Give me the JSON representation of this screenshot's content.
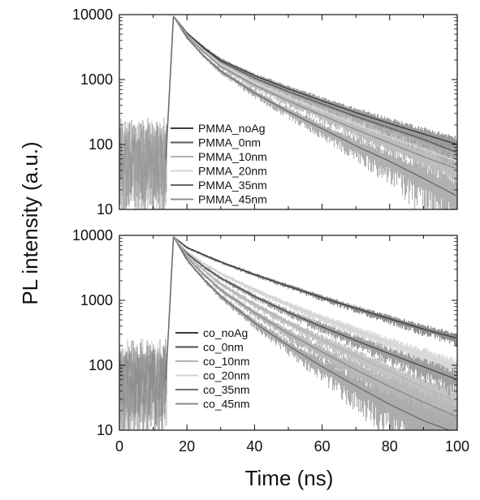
{
  "chart_data": [
    {
      "type": "line",
      "panel": "top",
      "yscale": "log",
      "xlim": [
        0,
        100
      ],
      "ylim": [
        10,
        10000
      ],
      "ytick_labels": [
        "10",
        "100",
        "1000",
        "10000"
      ],
      "xtick_labels": [],
      "legend_position": "bottom-left (inside)",
      "grid": false,
      "decay_onset_ns": 14,
      "peak": {
        "x": 16,
        "y": 9500
      },
      "series": [
        {
          "name": "PMMA_noAg",
          "color": "#3c3c3c",
          "noise_color": "#9a9a9a",
          "x": [
            16,
            20,
            25,
            30,
            40,
            50,
            60,
            70,
            80,
            90,
            100
          ],
          "y": [
            9500,
            5200,
            3100,
            2000,
            1150,
            720,
            470,
            310,
            210,
            145,
            100
          ]
        },
        {
          "name": "PMMA_0nm",
          "color": "#5a5a5a",
          "noise_color": "#a8a8a8",
          "x": [
            16,
            20,
            25,
            30,
            40,
            50,
            60,
            70,
            80,
            90,
            100
          ],
          "y": [
            9500,
            5000,
            2950,
            1900,
            1050,
            650,
            420,
            270,
            180,
            120,
            75
          ]
        },
        {
          "name": "PMMA_10nm",
          "color": "#b4b4b4",
          "noise_color": "#c8c8c8",
          "x": [
            16,
            20,
            25,
            30,
            40,
            50,
            60,
            70,
            80,
            90,
            100
          ],
          "y": [
            9500,
            4900,
            2850,
            1800,
            980,
            600,
            380,
            245,
            160,
            105,
            70
          ]
        },
        {
          "name": "PMMA_20nm",
          "color": "#d6d6d6",
          "noise_color": "#dcdcdc",
          "x": [
            16,
            20,
            25,
            30,
            40,
            50,
            60,
            70,
            80,
            90,
            100
          ],
          "y": [
            9500,
            4800,
            2750,
            1700,
            900,
            540,
            330,
            205,
            130,
            85,
            55
          ]
        },
        {
          "name": "PMMA_35nm",
          "color": "#6a6a6a",
          "noise_color": "#b0b0b0",
          "x": [
            16,
            20,
            25,
            30,
            40,
            50,
            60,
            70,
            80,
            90,
            100
          ],
          "y": [
            9500,
            4400,
            2300,
            1350,
            620,
            320,
            175,
            95,
            55,
            30,
            16
          ]
        },
        {
          "name": "PMMA_45nm",
          "color": "#8c8c8c",
          "noise_color": "#bdbdbd",
          "x": [
            16,
            20,
            25,
            30,
            40,
            50,
            60,
            70,
            80,
            90,
            100
          ],
          "y": [
            9500,
            4700,
            2650,
            1600,
            820,
            470,
            280,
            170,
            105,
            65,
            42
          ]
        }
      ]
    },
    {
      "type": "line",
      "panel": "bottom",
      "yscale": "log",
      "xlim": [
        0,
        100
      ],
      "ylim": [
        10,
        10000
      ],
      "ytick_labels": [
        "10",
        "100",
        "1000",
        "10000"
      ],
      "xtick_labels": [
        "0",
        "20",
        "40",
        "60",
        "80",
        "100"
      ],
      "xlabel": "Time (ns)",
      "legend_position": "bottom-left (inside)",
      "grid": false,
      "decay_onset_ns": 14,
      "peak": {
        "x": 16,
        "y": 9500
      },
      "series": [
        {
          "name": "co_noAg",
          "color": "#3c3c3c",
          "noise_color": "#8e8e8e",
          "x": [
            16,
            20,
            25,
            30,
            40,
            50,
            60,
            70,
            80,
            90,
            100
          ],
          "y": [
            9500,
            6500,
            5000,
            3900,
            2500,
            1650,
            1100,
            750,
            520,
            360,
            260
          ]
        },
        {
          "name": "co_0nm",
          "color": "#4c4c4c",
          "noise_color": "#a0a0a0",
          "x": [
            16,
            20,
            25,
            30,
            40,
            50,
            60,
            70,
            80,
            90,
            100
          ],
          "y": [
            9500,
            5300,
            3300,
            2200,
            1150,
            650,
            390,
            240,
            150,
            95,
            60
          ]
        },
        {
          "name": "co_10nm",
          "color": "#b4b4b4",
          "noise_color": "#c4c4c4",
          "x": [
            16,
            20,
            25,
            30,
            40,
            50,
            60,
            70,
            80,
            90,
            100
          ],
          "y": [
            9500,
            5000,
            2900,
            1800,
            860,
            450,
            245,
            140,
            80,
            46,
            27
          ]
        },
        {
          "name": "co_20nm",
          "color": "#d2d2d2",
          "noise_color": "#dadada",
          "x": [
            16,
            20,
            25,
            30,
            40,
            50,
            60,
            70,
            80,
            90,
            100
          ],
          "y": [
            9500,
            5600,
            3700,
            2600,
            1450,
            860,
            530,
            340,
            220,
            145,
            95
          ]
        },
        {
          "name": "co_35nm",
          "color": "#6e6e6e",
          "noise_color": "#acacac",
          "x": [
            16,
            20,
            25,
            30,
            40,
            50,
            60,
            70,
            80,
            90,
            100
          ],
          "y": [
            9500,
            4200,
            2100,
            1150,
            450,
            200,
            95,
            48,
            25,
            14,
            9
          ]
        },
        {
          "name": "co_45nm",
          "color": "#8a8a8a",
          "noise_color": "#b8b8b8",
          "x": [
            16,
            20,
            25,
            30,
            40,
            50,
            60,
            70,
            80,
            90,
            100
          ],
          "y": [
            9500,
            4600,
            2500,
            1450,
            640,
            310,
            160,
            85,
            47,
            27,
            16
          ]
        }
      ]
    }
  ],
  "ylabel": "PL intensity (a.u.)"
}
